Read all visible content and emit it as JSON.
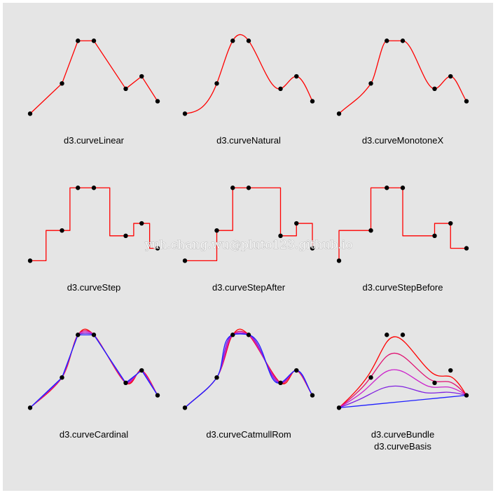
{
  "watermark": "yuh.chang.wu@pluto123.github.io",
  "colors": {
    "background": "#e5e5e5",
    "primary": "#ff0000",
    "point": "#000000",
    "gradient": [
      "#ff0000",
      "#e01070",
      "#cc20cc",
      "#8020e0",
      "#2020ff"
    ]
  },
  "chart_data": {
    "type": "diagram",
    "points": [
      [
        0,
        0.06
      ],
      [
        1,
        0.4
      ],
      [
        1.5,
        0.88
      ],
      [
        2,
        0.88
      ],
      [
        3,
        0.34
      ],
      [
        3.5,
        0.48
      ],
      [
        4,
        0.2
      ]
    ],
    "panels": [
      {
        "name": "curveLinear",
        "label": "d3.curveLinear"
      },
      {
        "name": "curveNatural",
        "label": "d3.curveNatural"
      },
      {
        "name": "curveMonotoneX",
        "label": "d3.curveMonotoneX"
      },
      {
        "name": "curveStep",
        "label": "d3.curveStep"
      },
      {
        "name": "curveStepAfter",
        "label": "d3.curveStepAfter"
      },
      {
        "name": "curveStepBefore",
        "label": "d3.curveStepBefore"
      },
      {
        "name": "curveCardinal",
        "label": "d3.curveCardinal",
        "tension": [
          0,
          0.25,
          0.5,
          0.75,
          1
        ]
      },
      {
        "name": "curveCatmullRom",
        "label": "d3.curveCatmullRom",
        "alpha": [
          0,
          0.25,
          0.5,
          0.75,
          1
        ]
      },
      {
        "name": "curveBundle",
        "label": "d3.curveBundle",
        "label2": "d3.curveBasis",
        "beta": [
          1,
          0.75,
          0.5,
          0.25,
          0
        ]
      }
    ]
  }
}
